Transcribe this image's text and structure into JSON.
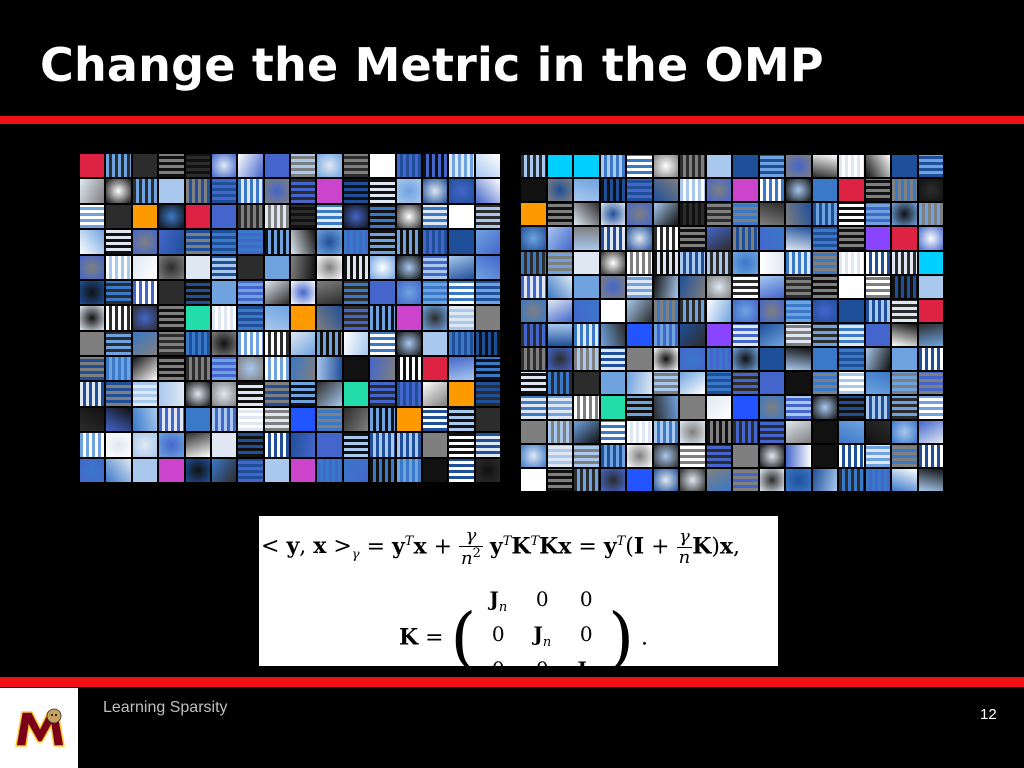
{
  "slide": {
    "title": "Change the Metric in the OMP",
    "footer_text": "Learning Sparsity",
    "page_number": "12"
  },
  "equation": {
    "line1_lhs": "< y, x >",
    "line1_sub": "γ",
    "line2_lhs": "K ="
  },
  "colors": {
    "background": "#000000",
    "accent_red": "#ee1111",
    "title_text": "#ffffff",
    "footer_text": "#bfbfbf",
    "logo_maroon": "#7a0019",
    "logo_gold": "#ffcc33"
  },
  "dictionaries": {
    "left_label": "",
    "right_label": ""
  }
}
